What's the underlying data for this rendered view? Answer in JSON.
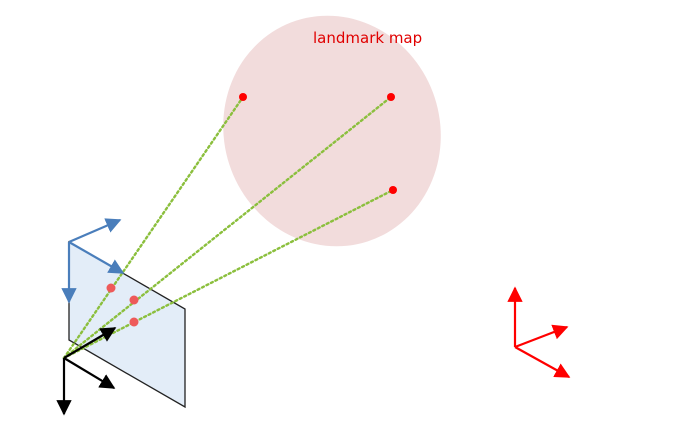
{
  "diagram": {
    "landmark_map": {
      "label": "landmark map",
      "label_color": "#e00000",
      "fill_color": "#f2dcdc"
    },
    "image_plane": {
      "fill_color": "#e3edf8",
      "stroke_color": "#222222"
    },
    "colors": {
      "landmark": "#ff0000",
      "projection": "#ee5a5a",
      "ray": "#8bbf3d",
      "camera_frame": "#000000",
      "image_frame": "#4a7ebb",
      "world_frame": "#ff0000"
    }
  }
}
